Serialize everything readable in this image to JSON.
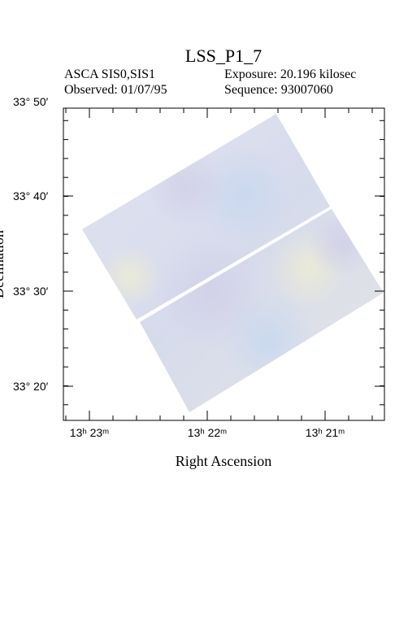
{
  "title": "LSS_P1_7",
  "info": {
    "instrument": "ASCA SIS0,SIS1",
    "exposure": "Exposure: 20.196 kilosec",
    "observed": "Observed: 01/07/95",
    "sequence": "Sequence: 93007060"
  },
  "axes": {
    "x_label": "Right Ascension",
    "y_label": "Declination",
    "x_ticks": [
      "13ʰ 23ᵐ",
      "13ʰ 22ᵐ",
      "13ʰ 21ᵐ"
    ],
    "y_ticks": [
      "33° 50′",
      "33° 40′",
      "33° 30′",
      "33° 20′"
    ]
  }
}
